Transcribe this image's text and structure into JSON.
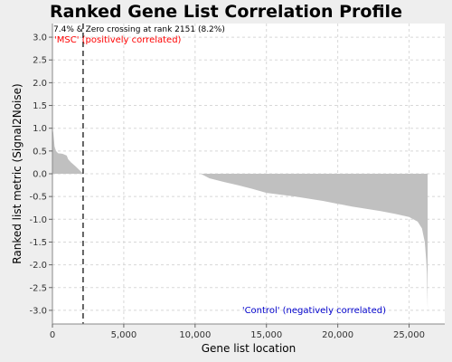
{
  "chart_data": {
    "type": "area",
    "title": "Ranked Gene List Correlation Profile",
    "xlabel": "Gene list location",
    "ylabel": "Ranked list metric (Signal2Noise)",
    "xlim": [
      0,
      27500
    ],
    "ylim": [
      -3.3,
      3.3
    ],
    "x_ticks": [
      0,
      5000,
      10000,
      15000,
      20000,
      25000
    ],
    "x_tick_labels": [
      "0",
      "5,000",
      "10,000",
      "15,000",
      "20,000",
      "25,000"
    ],
    "y_ticks": [
      3.0,
      2.5,
      2.0,
      1.5,
      1.0,
      0.5,
      0.0,
      -0.5,
      -1.0,
      -1.5,
      -2.0,
      -2.5,
      -3.0
    ],
    "y_tick_labels": [
      "3.0",
      "2.5",
      "2.0",
      "1.5",
      "1.0",
      "0.5",
      "0.0",
      "-0.5",
      "-1.0",
      "-1.5",
      "-2.0",
      "-2.5",
      "-3.0"
    ],
    "grid": true,
    "fill_color": "#c0c0c0",
    "zero_crossing_rank": 2151,
    "annotations": {
      "zero_crossing": "7.4% & Zero crossing at rank 2151 (8.2%)",
      "positive": "'MSC' (positively correlated)",
      "negative": "'Control' (negatively correlated)"
    },
    "annotation_colors": {
      "positive": "#ff0000",
      "negative": "#0000cc"
    },
    "series": [
      {
        "x": [
          0,
          60,
          150,
          250,
          400,
          700,
          1000,
          1100,
          1300,
          1600,
          1900,
          2151,
          10400,
          11000,
          12000,
          13000,
          14000,
          15000,
          16000,
          17000,
          18000,
          19000,
          20000,
          21000,
          22000,
          23000,
          24000,
          25000,
          25600,
          25900,
          26100,
          26200,
          26250,
          26300
        ],
        "values": [
          1.0,
          0.9,
          0.6,
          0.5,
          0.45,
          0.44,
          0.4,
          0.32,
          0.25,
          0.17,
          0.08,
          0.0,
          0.0,
          -0.1,
          -0.18,
          -0.25,
          -0.33,
          -0.42,
          -0.46,
          -0.5,
          -0.55,
          -0.6,
          -0.66,
          -0.72,
          -0.77,
          -0.82,
          -0.88,
          -0.95,
          -1.05,
          -1.2,
          -1.5,
          -1.9,
          -2.2,
          -3.0
        ]
      }
    ]
  }
}
